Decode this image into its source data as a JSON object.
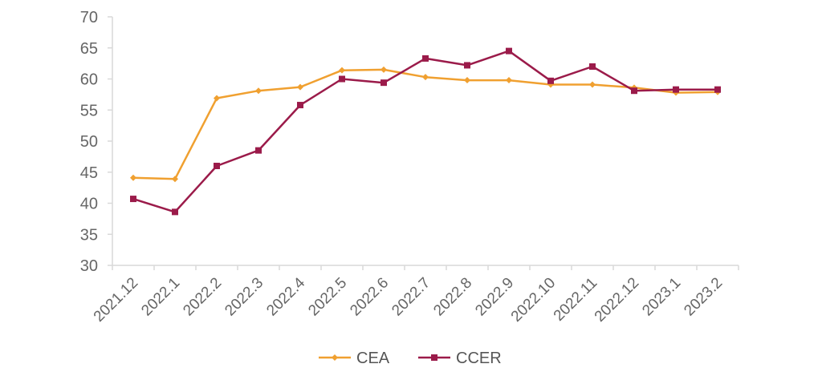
{
  "chart_data": {
    "type": "line",
    "title": "",
    "xlabel": "",
    "ylabel": "",
    "categories": [
      "2021.12",
      "2022.1",
      "2022.2",
      "2022.3",
      "2022.4",
      "2022.5",
      "2022.6",
      "2022.7",
      "2022.8",
      "2022.9",
      "2022.10",
      "2022.11",
      "2022.12",
      "2023.1",
      "2023.2"
    ],
    "y_ticks": [
      "30",
      "35",
      "40",
      "45",
      "50",
      "55",
      "60",
      "65",
      "70"
    ],
    "ylim": [
      30,
      70
    ],
    "grid": false,
    "legend_position": "bottom",
    "series": [
      {
        "name": "CEA",
        "color": "#F0A030",
        "marker": "diamond",
        "values": [
          44.1,
          43.9,
          56.9,
          58.1,
          58.7,
          61.4,
          61.5,
          60.3,
          59.8,
          59.8,
          59.1,
          59.1,
          58.6,
          57.8,
          57.9
        ]
      },
      {
        "name": "CCER",
        "color": "#9B1B4A",
        "marker": "square",
        "values": [
          40.7,
          38.6,
          46.0,
          48.5,
          55.8,
          60.0,
          59.4,
          63.3,
          62.2,
          64.5,
          59.7,
          62.0,
          58.1,
          58.3,
          58.3
        ]
      }
    ]
  }
}
